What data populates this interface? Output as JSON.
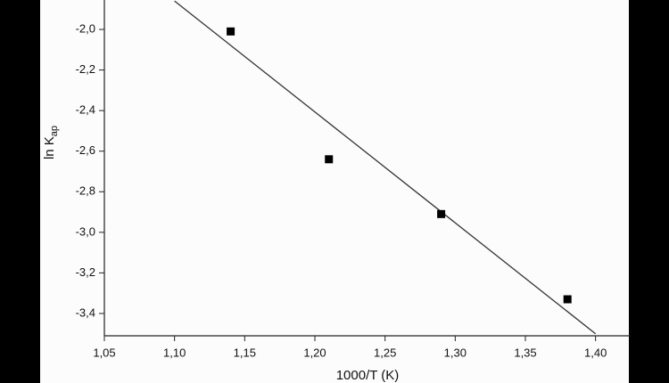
{
  "chart_data": {
    "type": "scatter",
    "x_label": "1000/T (K)",
    "y_label": "ln K",
    "y_label_sub": "ap",
    "x": [
      1.14,
      1.21,
      1.29,
      1.38
    ],
    "values": [
      -2.01,
      -2.64,
      -2.91,
      -3.33
    ],
    "color": "#000000",
    "fit_line": {
      "x": [
        1.1,
        1.4
      ],
      "values": [
        -1.86,
        -3.5
      ],
      "color": "#333333"
    },
    "xlim": [
      1.05,
      1.425
    ],
    "ylim": [
      -3.51,
      -1.855
    ],
    "xticks": [
      {
        "value": 1.05,
        "label": "1,05"
      },
      {
        "value": 1.1,
        "label": "1,10"
      },
      {
        "value": 1.15,
        "label": "1,15"
      },
      {
        "value": 1.2,
        "label": "1,20"
      },
      {
        "value": 1.25,
        "label": "1,25"
      },
      {
        "value": 1.3,
        "label": "1,30"
      },
      {
        "value": 1.35,
        "label": "1,35"
      },
      {
        "value": 1.4,
        "label": "1,40"
      }
    ],
    "yticks": [
      {
        "value": -2.0,
        "label": "-2,0"
      },
      {
        "value": -2.2,
        "label": "-2,2"
      },
      {
        "value": -2.4,
        "label": "-2,4"
      },
      {
        "value": -2.6,
        "label": "-2,6"
      },
      {
        "value": -2.8,
        "label": "-2,8"
      },
      {
        "value": -3.0,
        "label": "-3,0"
      },
      {
        "value": -3.2,
        "label": "-3,2"
      },
      {
        "value": -3.4,
        "label": "-3,4"
      }
    ]
  }
}
